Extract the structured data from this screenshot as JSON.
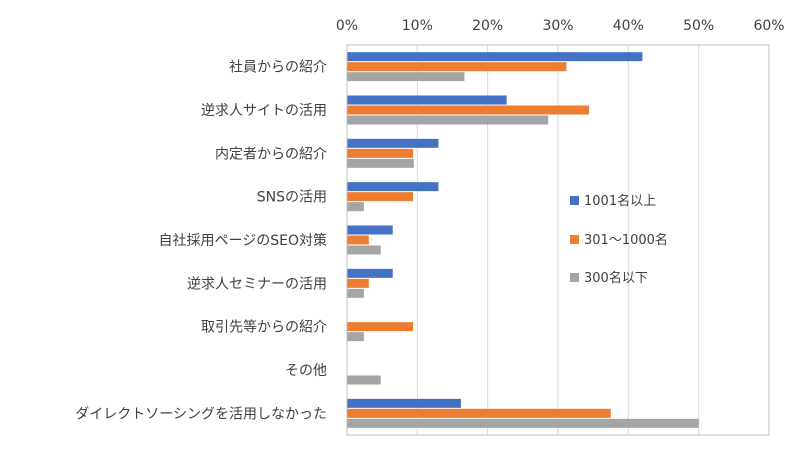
{
  "chart_data": {
    "type": "bar",
    "orientation": "horizontal",
    "title": "",
    "xlabel": "",
    "ylabel": "",
    "xlim": [
      0,
      60
    ],
    "x_ticks": [
      "0%",
      "10%",
      "20%",
      "30%",
      "40%",
      "50%",
      "60%"
    ],
    "x_tick_values": [
      0,
      10,
      20,
      30,
      40,
      50,
      60
    ],
    "x_axis_position": "top",
    "grid": true,
    "legend_position": "right-inside",
    "categories": [
      "社員からの紹介",
      "逆求人サイトの活用",
      "内定者からの紹介",
      "SNSの活用",
      "自社採用ページのSEO対策",
      "逆求人セミナーの活用",
      "取引先等からの紹介",
      "その他",
      "ダイレクトソーシングを活用しなかった"
    ],
    "series": [
      {
        "name": "1001名以上",
        "color": "#4472c4",
        "values": [
          42,
          22.7,
          13,
          13,
          6.5,
          6.5,
          0,
          0,
          16.2
        ]
      },
      {
        "name": "301～1000名",
        "color": "#ed7d31",
        "values": [
          31.2,
          34.4,
          9.4,
          9.4,
          3.1,
          3.1,
          9.4,
          0,
          37.5
        ]
      },
      {
        "name": "300名以下",
        "color": "#a5a5a5",
        "values": [
          16.7,
          28.6,
          9.5,
          2.4,
          4.8,
          2.4,
          2.4,
          4.8,
          50
        ]
      }
    ]
  }
}
